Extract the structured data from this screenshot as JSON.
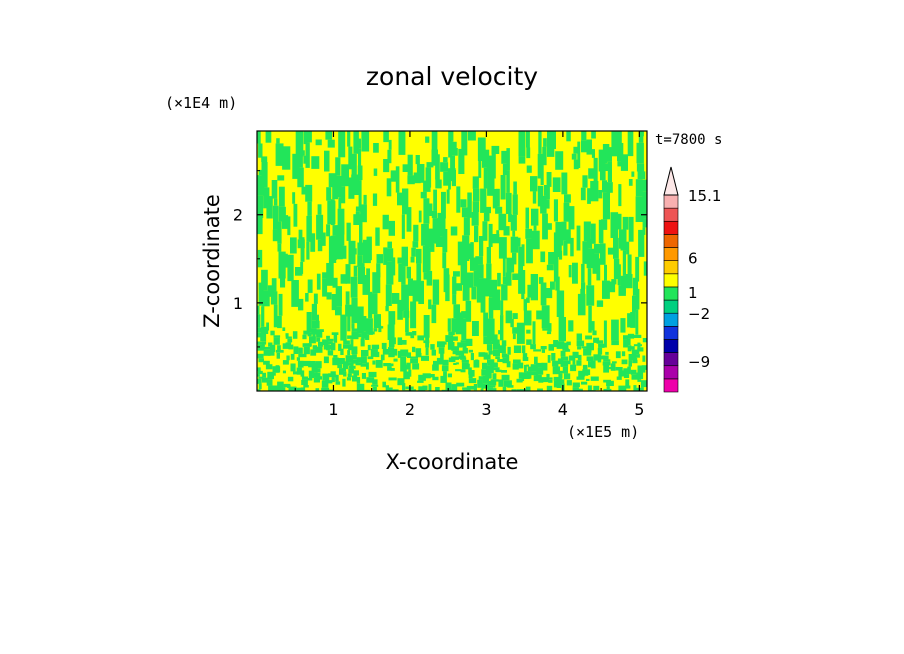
{
  "chart_data": {
    "type": "heatmap",
    "title": "zonal velocity",
    "xlabel": "X-coordinate",
    "ylabel": "Z-coordinate",
    "x_unit_label": "(×1E5 m)",
    "y_unit_label": "(×1E4 m)",
    "time_label": "t=7800 s",
    "xlim": [
      0,
      5.1
    ],
    "ylim": [
      0,
      2.95
    ],
    "x_ticks": [
      1,
      2,
      3,
      4,
      5
    ],
    "y_ticks": [
      1,
      2
    ],
    "field_colors": {
      "positive": "#ffff00",
      "near_zero": "#22e55a"
    },
    "colorbar": {
      "labels": [
        {
          "text": "15.1",
          "value": 15.1
        },
        {
          "text": "6",
          "value": 6
        },
        {
          "text": "1",
          "value": 1
        },
        {
          "text": "−2",
          "value": -2
        },
        {
          "text": "−9",
          "value": -9
        }
      ],
      "segments": [
        {
          "color": "#ee00aa"
        },
        {
          "color": "#aa00aa"
        },
        {
          "color": "#660099"
        },
        {
          "color": "#0000aa"
        },
        {
          "color": "#1133dd"
        },
        {
          "color": "#00a0e0"
        },
        {
          "color": "#00d080"
        },
        {
          "color": "#22e55a"
        },
        {
          "color": "#ffff00"
        },
        {
          "color": "#ffcc00"
        },
        {
          "color": "#ff9900"
        },
        {
          "color": "#ee6600"
        },
        {
          "color": "#ee1111"
        },
        {
          "color": "#ee5555"
        },
        {
          "color": "#f8b0b0"
        }
      ],
      "extend_max_color": "#fde8e8"
    }
  }
}
